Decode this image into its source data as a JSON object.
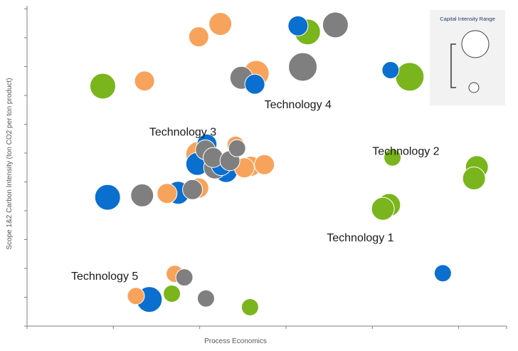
{
  "chart_data": {
    "type": "scatter",
    "title": "",
    "xlabel": "Process Economics",
    "ylabel": "Scope 1&2 Carbon Intensity  (ton CO2 per ton  product)",
    "xlim": [
      0,
      100
    ],
    "ylim": [
      0,
      100
    ],
    "x_ticks": [
      0,
      18,
      36,
      54,
      72,
      90,
      100
    ],
    "y_ticks": [
      0,
      9,
      18,
      27,
      36,
      45,
      54,
      63,
      72,
      81,
      90,
      99
    ],
    "grid": false,
    "colors": {
      "blue": "#0a6fcf",
      "orange": "#f7a35c",
      "green": "#7ab51d",
      "gray": "#7f7f7f"
    },
    "legend": {
      "title": "Capital Intensity Range",
      "position": "top-right"
    },
    "annotations": [
      {
        "text": "Technology 4",
        "x": 49.5,
        "y": 68
      },
      {
        "text": "Technology 3",
        "x": 25.5,
        "y": 59.5
      },
      {
        "text": "Technology 2",
        "x": 72,
        "y": 53.5
      },
      {
        "text": "Technology 1",
        "x": 62.5,
        "y": 26.5
      },
      {
        "text": "Technology 5",
        "x": 9.2,
        "y": 14.5
      }
    ],
    "series": [
      {
        "name": "blue",
        "color": "#0a6fcf",
        "points": [
          {
            "x": 56.5,
            "y": 93.7,
            "size": 2
          },
          {
            "x": 47.5,
            "y": 75.5,
            "size": 2
          },
          {
            "x": 75.8,
            "y": 79.9,
            "size": 1.5
          },
          {
            "x": 37.5,
            "y": 56.8,
            "size": 2
          },
          {
            "x": 35.5,
            "y": 50.6,
            "size": 2.5
          },
          {
            "x": 40.5,
            "y": 50.1,
            "size": 2
          },
          {
            "x": 41.5,
            "y": 48.4,
            "size": 2.5
          },
          {
            "x": 31.5,
            "y": 41.6,
            "size": 2.5
          },
          {
            "x": 16.8,
            "y": 40.2,
            "size": 3
          },
          {
            "x": 86.7,
            "y": 16.5,
            "size": 1.5
          },
          {
            "x": 25.5,
            "y": 8.3,
            "size": 3
          }
        ]
      },
      {
        "name": "orange",
        "color": "#f7a35c",
        "points": [
          {
            "x": 40.3,
            "y": 94.3,
            "size": 2.5
          },
          {
            "x": 35.8,
            "y": 90.3,
            "size": 2
          },
          {
            "x": 24.5,
            "y": 76.5,
            "size": 2
          },
          {
            "x": 47.8,
            "y": 78.9,
            "size": 3
          },
          {
            "x": 43.5,
            "y": 56.6,
            "size": 1.5
          },
          {
            "x": 35.8,
            "y": 53.6,
            "size": 3
          },
          {
            "x": 46.7,
            "y": 49.9,
            "size": 2
          },
          {
            "x": 49.5,
            "y": 50.4,
            "size": 2
          },
          {
            "x": 45.3,
            "y": 49.4,
            "size": 2
          },
          {
            "x": 35.8,
            "y": 43.1,
            "size": 2
          },
          {
            "x": 29.2,
            "y": 41.4,
            "size": 2
          },
          {
            "x": 30.8,
            "y": 16.3,
            "size": 1.5
          },
          {
            "x": 22.7,
            "y": 9.4,
            "size": 1.5
          }
        ]
      },
      {
        "name": "green",
        "color": "#7ab51d",
        "points": [
          {
            "x": 58.5,
            "y": 91.8,
            "size": 3
          },
          {
            "x": 79.8,
            "y": 77.8,
            "size": 3.5
          },
          {
            "x": 15.8,
            "y": 74.9,
            "size": 3
          },
          {
            "x": 76.2,
            "y": 52.6,
            "size": 1.5
          },
          {
            "x": 93.8,
            "y": 49.6,
            "size": 2.5
          },
          {
            "x": 93.2,
            "y": 46.1,
            "size": 2.5
          },
          {
            "x": 75.5,
            "y": 37.8,
            "size": 2.5
          },
          {
            "x": 74.2,
            "y": 36.6,
            "size": 2.5
          },
          {
            "x": 30.2,
            "y": 10.1,
            "size": 1.5
          },
          {
            "x": 46.5,
            "y": 5.9,
            "size": 1.5
          }
        ]
      },
      {
        "name": "gray",
        "color": "#7f7f7f",
        "points": [
          {
            "x": 64.3,
            "y": 94.0,
            "size": 3
          },
          {
            "x": 57.5,
            "y": 80.9,
            "size": 3.5
          },
          {
            "x": 44.7,
            "y": 77.5,
            "size": 2.5
          },
          {
            "x": 37.2,
            "y": 55.0,
            "size": 2
          },
          {
            "x": 38.8,
            "y": 52.6,
            "size": 2
          },
          {
            "x": 39.2,
            "y": 49.5,
            "size": 2.5
          },
          {
            "x": 42.3,
            "y": 51.6,
            "size": 2
          },
          {
            "x": 43.8,
            "y": 55.5,
            "size": 1.5
          },
          {
            "x": 34.5,
            "y": 42.6,
            "size": 2
          },
          {
            "x": 24.0,
            "y": 40.8,
            "size": 2.5
          },
          {
            "x": 32.8,
            "y": 15.2,
            "size": 1.5
          },
          {
            "x": 37.3,
            "y": 8.6,
            "size": 1.5
          }
        ]
      }
    ]
  }
}
